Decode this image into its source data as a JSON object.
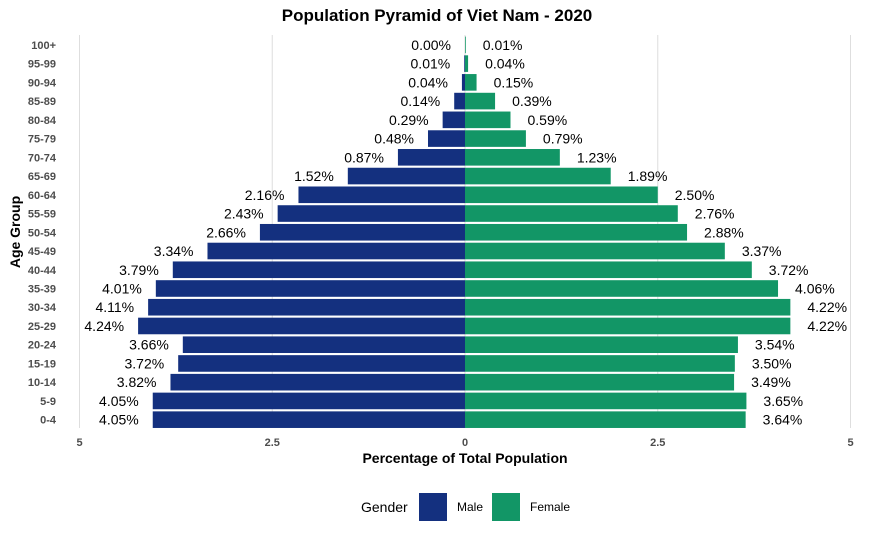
{
  "chart_data": {
    "type": "bar",
    "orientation": "horizontal",
    "title": "Population Pyramid of Viet Nam - 2020",
    "xlabel": "Percentage of Total Population",
    "ylabel": "Age Group",
    "xlim": [
      -5,
      5
    ],
    "x_ticks": [
      -5,
      -2.5,
      0,
      2.5,
      5
    ],
    "x_tick_labels": [
      "5",
      "2.5",
      "0",
      "2.5",
      "5"
    ],
    "grid": "vertical",
    "legend_position": "bottom",
    "legend_title": "Gender",
    "categories": [
      "0-4",
      "5-9",
      "10-14",
      "15-19",
      "20-24",
      "25-29",
      "30-34",
      "35-39",
      "40-44",
      "45-49",
      "50-54",
      "55-59",
      "60-64",
      "65-69",
      "70-74",
      "75-79",
      "80-84",
      "85-89",
      "90-94",
      "95-99",
      "100+"
    ],
    "series": [
      {
        "name": "Male",
        "color": "#14307F",
        "side": "left",
        "values": [
          4.05,
          4.05,
          3.82,
          3.72,
          3.66,
          4.24,
          4.11,
          4.01,
          3.79,
          3.34,
          2.66,
          2.43,
          2.16,
          1.52,
          0.87,
          0.48,
          0.29,
          0.14,
          0.04,
          0.01,
          0.0
        ],
        "labels": [
          "4.05%",
          "4.05%",
          "3.82%",
          "3.72%",
          "3.66%",
          "4.24%",
          "4.11%",
          "4.01%",
          "3.79%",
          "3.34%",
          "2.66%",
          "2.43%",
          "2.16%",
          "1.52%",
          "0.87%",
          "0.48%",
          "0.29%",
          "0.14%",
          "0.04%",
          "0.01%",
          "0.00%"
        ]
      },
      {
        "name": "Female",
        "color": "#129666",
        "side": "right",
        "values": [
          3.64,
          3.65,
          3.49,
          3.5,
          3.54,
          4.22,
          4.22,
          4.06,
          3.72,
          3.37,
          2.88,
          2.76,
          2.5,
          1.89,
          1.23,
          0.79,
          0.59,
          0.39,
          0.15,
          0.04,
          0.01
        ],
        "labels": [
          "3.64%",
          "3.65%",
          "3.49%",
          "3.50%",
          "3.54%",
          "4.22%",
          "4.22%",
          "4.06%",
          "3.72%",
          "3.37%",
          "2.88%",
          "2.76%",
          "2.50%",
          "1.89%",
          "1.23%",
          "0.79%",
          "0.59%",
          "0.39%",
          "0.15%",
          "0.04%",
          "0.01%"
        ]
      }
    ]
  }
}
